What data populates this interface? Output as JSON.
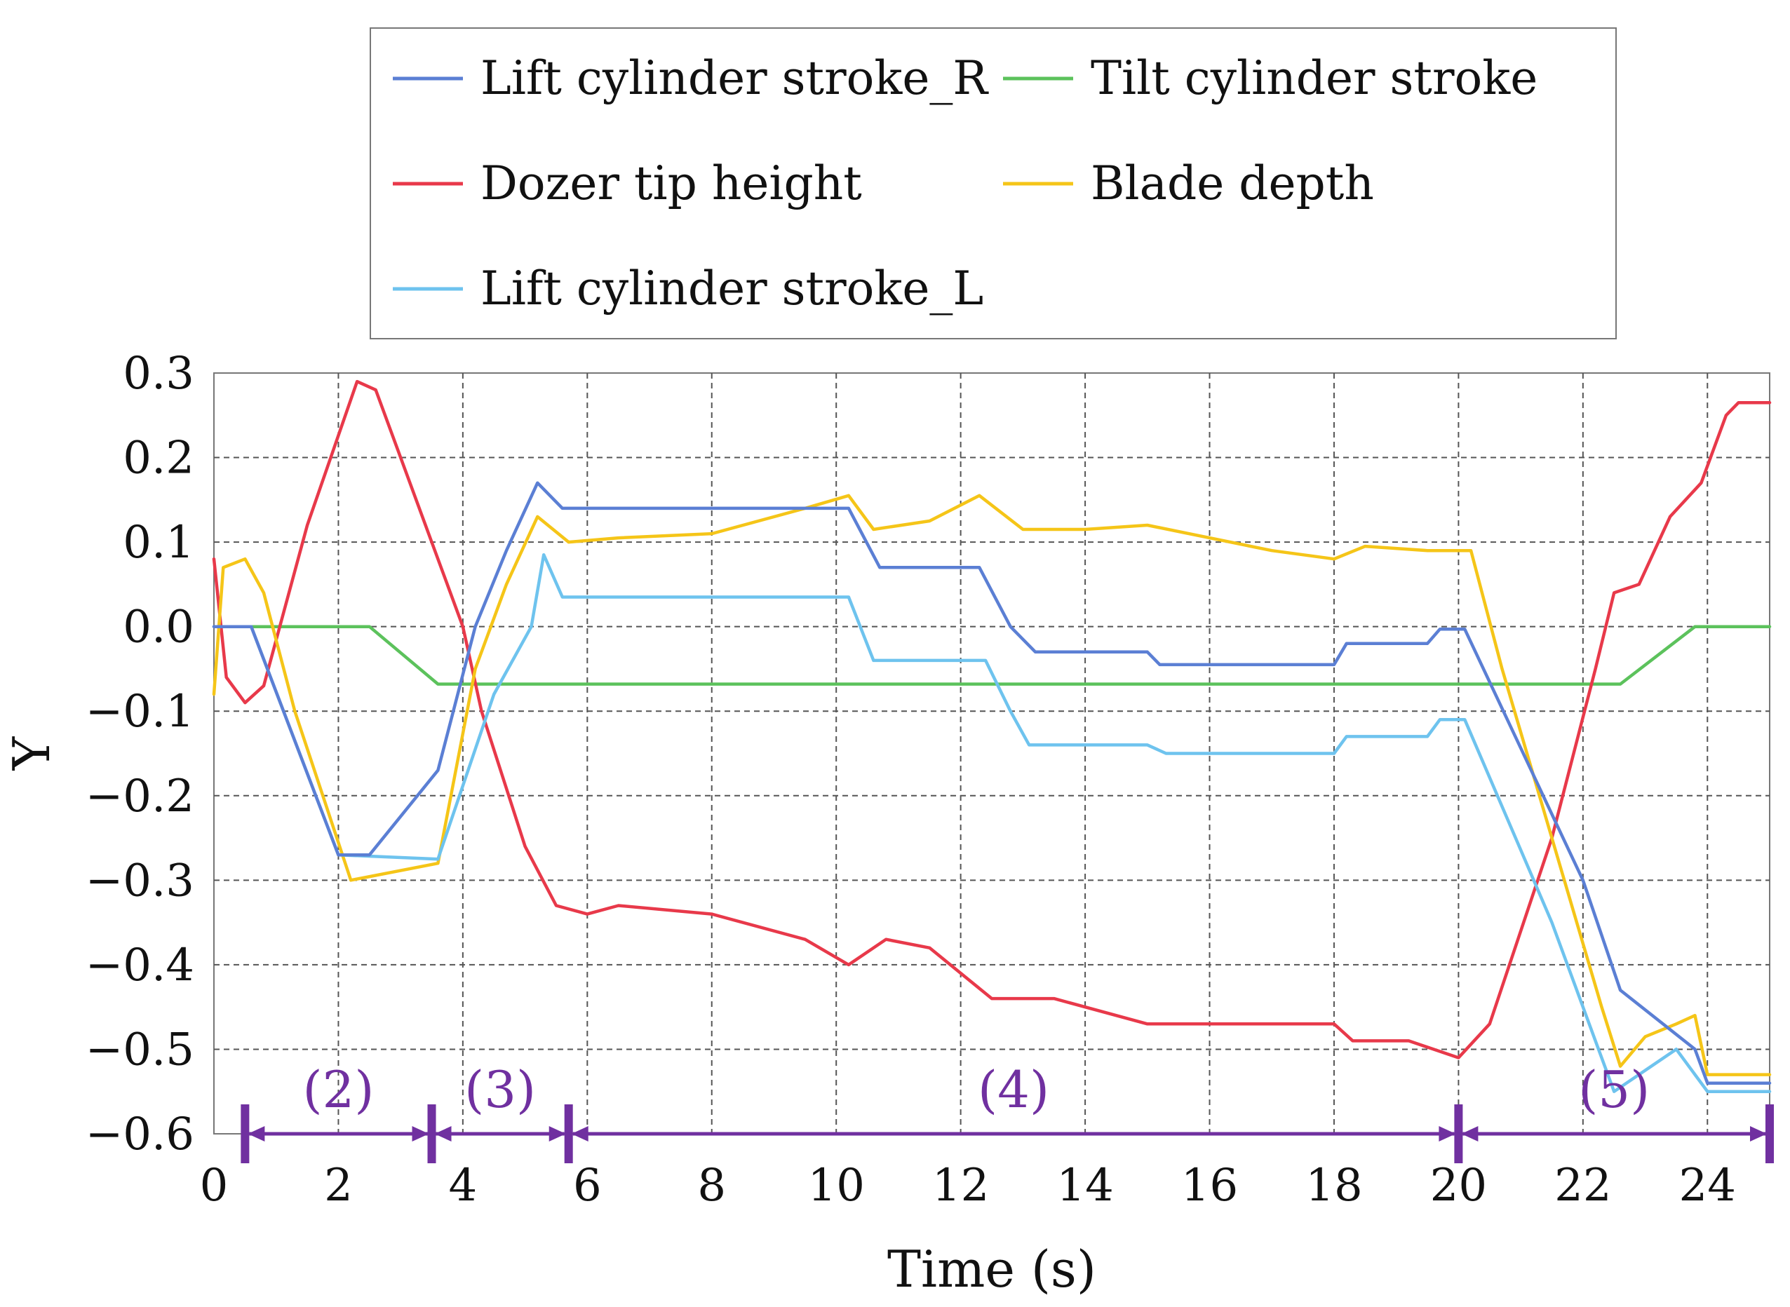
{
  "chart_data": {
    "type": "line",
    "title": "",
    "xlabel": "Time (s)",
    "ylabel": "Y",
    "xlim": [
      0,
      25
    ],
    "ylim": [
      -0.6,
      0.3
    ],
    "grid": true,
    "legend_position": "top-center",
    "x_ticks": [
      "0",
      "2",
      "4",
      "6",
      "8",
      "10",
      "12",
      "14",
      "16",
      "18",
      "20",
      "22",
      "24"
    ],
    "y_ticks": [
      "0.3",
      "0.2",
      "0.1",
      "0.0",
      "−0.1",
      "−0.2",
      "−0.3",
      "−0.4",
      "−0.5",
      "−0.6"
    ],
    "series": [
      {
        "name": "Lift cylinder stroke_R",
        "color": "#5B7FD4",
        "points": [
          [
            0,
            0
          ],
          [
            0.6,
            0
          ],
          [
            2.0,
            -0.27
          ],
          [
            2.5,
            -0.27
          ],
          [
            3.6,
            -0.17
          ],
          [
            4.2,
            0.0
          ],
          [
            4.7,
            0.09
          ],
          [
            5.2,
            0.17
          ],
          [
            5.6,
            0.14
          ],
          [
            10.2,
            0.14
          ],
          [
            10.7,
            0.07
          ],
          [
            12.3,
            0.07
          ],
          [
            12.8,
            0.0
          ],
          [
            13.2,
            -0.03
          ],
          [
            15.0,
            -0.03
          ],
          [
            15.2,
            -0.045
          ],
          [
            18.0,
            -0.045
          ],
          [
            18.2,
            -0.02
          ],
          [
            19.5,
            -0.02
          ],
          [
            19.7,
            -0.003
          ],
          [
            20.1,
            -0.003
          ],
          [
            22.0,
            -0.3
          ],
          [
            22.6,
            -0.43
          ],
          [
            23.8,
            -0.5
          ],
          [
            24.0,
            -0.54
          ],
          [
            25.0,
            -0.54
          ]
        ]
      },
      {
        "name": "Tilt cylinder stroke",
        "color": "#5CC25C",
        "points": [
          [
            0,
            0
          ],
          [
            2.5,
            0
          ],
          [
            3.6,
            -0.068
          ],
          [
            22.6,
            -0.068
          ],
          [
            23.8,
            0
          ],
          [
            25.0,
            0
          ]
        ]
      },
      {
        "name": "Dozer tip height",
        "color": "#E8394A",
        "points": [
          [
            0,
            0.08
          ],
          [
            0.2,
            -0.06
          ],
          [
            0.5,
            -0.09
          ],
          [
            0.8,
            -0.07
          ],
          [
            1.5,
            0.12
          ],
          [
            2.3,
            0.29
          ],
          [
            2.6,
            0.28
          ],
          [
            3.5,
            0.1
          ],
          [
            4.0,
            0.0
          ],
          [
            4.3,
            -0.1
          ],
          [
            5.0,
            -0.26
          ],
          [
            5.5,
            -0.33
          ],
          [
            6.0,
            -0.34
          ],
          [
            6.5,
            -0.33
          ],
          [
            8.0,
            -0.34
          ],
          [
            9.5,
            -0.37
          ],
          [
            10.2,
            -0.4
          ],
          [
            10.8,
            -0.37
          ],
          [
            11.5,
            -0.38
          ],
          [
            12.5,
            -0.44
          ],
          [
            13.0,
            -0.44
          ],
          [
            13.5,
            -0.44
          ],
          [
            15.0,
            -0.47
          ],
          [
            16.0,
            -0.47
          ],
          [
            17.0,
            -0.47
          ],
          [
            18.0,
            -0.47
          ],
          [
            18.3,
            -0.49
          ],
          [
            19.2,
            -0.49
          ],
          [
            20.0,
            -0.51
          ],
          [
            20.5,
            -0.47
          ],
          [
            21.5,
            -0.25
          ],
          [
            22.2,
            -0.05
          ],
          [
            22.5,
            0.04
          ],
          [
            22.9,
            0.05
          ],
          [
            23.4,
            0.13
          ],
          [
            23.9,
            0.17
          ],
          [
            24.3,
            0.25
          ],
          [
            24.5,
            0.265
          ],
          [
            25.0,
            0.265
          ]
        ]
      },
      {
        "name": "Blade depth",
        "color": "#F5C518",
        "points": [
          [
            0,
            -0.08
          ],
          [
            0.15,
            0.07
          ],
          [
            0.5,
            0.08
          ],
          [
            0.8,
            0.04
          ],
          [
            1.3,
            -0.1
          ],
          [
            2.2,
            -0.3
          ],
          [
            3.6,
            -0.28
          ],
          [
            4.2,
            -0.05
          ],
          [
            4.7,
            0.05
          ],
          [
            5.2,
            0.13
          ],
          [
            5.7,
            0.1
          ],
          [
            6.5,
            0.105
          ],
          [
            8.0,
            0.11
          ],
          [
            9.5,
            0.14
          ],
          [
            10.2,
            0.155
          ],
          [
            10.6,
            0.115
          ],
          [
            11.5,
            0.125
          ],
          [
            12.3,
            0.155
          ],
          [
            13.0,
            0.115
          ],
          [
            14.0,
            0.115
          ],
          [
            15.0,
            0.12
          ],
          [
            16.0,
            0.105
          ],
          [
            17.0,
            0.09
          ],
          [
            18.0,
            0.08
          ],
          [
            18.5,
            0.095
          ],
          [
            19.5,
            0.09
          ],
          [
            20.2,
            0.09
          ],
          [
            20.7,
            -0.05
          ],
          [
            21.5,
            -0.25
          ],
          [
            22.3,
            -0.45
          ],
          [
            22.6,
            -0.52
          ],
          [
            23.0,
            -0.485
          ],
          [
            23.5,
            -0.47
          ],
          [
            23.8,
            -0.46
          ],
          [
            24.0,
            -0.53
          ],
          [
            25.0,
            -0.53
          ]
        ]
      },
      {
        "name": "Lift cylinder stroke_L",
        "color": "#6EC3EE",
        "points": [
          [
            0,
            0
          ],
          [
            0.6,
            0
          ],
          [
            2.0,
            -0.27
          ],
          [
            3.6,
            -0.275
          ],
          [
            4.5,
            -0.08
          ],
          [
            5.1,
            0.0
          ],
          [
            5.3,
            0.085
          ],
          [
            5.6,
            0.035
          ],
          [
            10.2,
            0.035
          ],
          [
            10.6,
            -0.04
          ],
          [
            12.4,
            -0.04
          ],
          [
            12.8,
            -0.1
          ],
          [
            13.1,
            -0.14
          ],
          [
            15.0,
            -0.14
          ],
          [
            15.3,
            -0.15
          ],
          [
            18.0,
            -0.15
          ],
          [
            18.2,
            -0.13
          ],
          [
            19.5,
            -0.13
          ],
          [
            19.7,
            -0.11
          ],
          [
            20.1,
            -0.11
          ],
          [
            21.5,
            -0.35
          ],
          [
            22.5,
            -0.55
          ],
          [
            23.5,
            -0.5
          ],
          [
            24.0,
            -0.55
          ],
          [
            25.0,
            -0.55
          ]
        ]
      }
    ],
    "phases": [
      {
        "label": "(2)",
        "start": 0.5,
        "end": 3.5
      },
      {
        "label": "(3)",
        "start": 3.5,
        "end": 5.7
      },
      {
        "label": "(4)",
        "start": 5.7,
        "end": 20.0
      },
      {
        "label": "(5)",
        "start": 20.0,
        "end": 25.0
      }
    ],
    "phase_color": "#7030A0"
  }
}
